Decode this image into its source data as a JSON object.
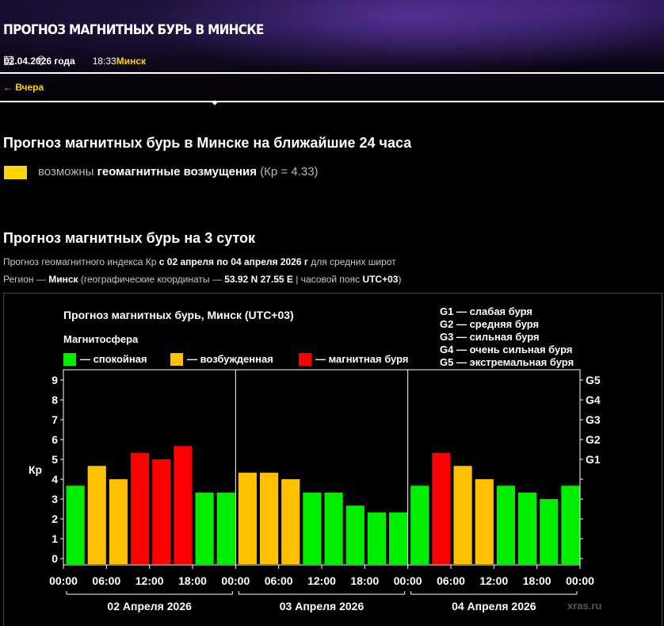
{
  "header": {
    "title": "ПРОГНОЗ МАГНИТНЫХ БУРЬ В МИНСКЕ",
    "date": "02.04.2026 года",
    "time": "18:33",
    "city": "Минск",
    "prev_link": "← Вчера"
  },
  "today": {
    "heading": "Прогноз магнитных бурь в Минске на ближайшие 24 часа",
    "status_pre": "возможны",
    "status_bold": "геомагнитные возмущения",
    "status_post": "(Кр = 4.33)",
    "status_color": "#ffd400"
  },
  "three_day": {
    "heading": "Прогноз магнитных бурь на 3 суток",
    "line1_pre": "Прогноз геомагнитного индекса Кр",
    "line1_bold": "с 02 апреля по 04 апреля 2026 г",
    "line1_post": "для средних широт",
    "line2_pre": "Регион —",
    "line2_city": "Минск",
    "line2_mid": "(географические координаты —",
    "line2_coords": "53.92 N 27.55 E",
    "line2_tz_pre": "| часовой пояс",
    "line2_tz": "UTC+03",
    "line2_end": ")"
  },
  "chart_data": {
    "type": "bar",
    "title": "Прогноз магнитных бурь, Минск (UTC+03)",
    "legend_title": "Магнитосфера",
    "legend": [
      {
        "label": "— спокойная",
        "color": "#00ee00"
      },
      {
        "label": "— возбужденная",
        "color": "#ffc000"
      },
      {
        "label": "— магнитная буря",
        "color": "#ff0000"
      }
    ],
    "storm_scale": [
      "G1 — слабая буря",
      "G2 — средняя буря",
      "G3 — сильная буря",
      "G4 — очень сильная буря",
      "G5 — экстремальная буря"
    ],
    "ylabel": "Кр",
    "ylim": [
      0,
      9
    ],
    "y_ticks": [
      "0",
      "1",
      "2",
      "3",
      "4",
      "5",
      "6",
      "7",
      "8",
      "9"
    ],
    "right_ticks": [
      {
        "label": "G1",
        "value": 5
      },
      {
        "label": "G2",
        "value": 6
      },
      {
        "label": "G3",
        "value": 7
      },
      {
        "label": "G4",
        "value": 8
      },
      {
        "label": "G5",
        "value": 9
      }
    ],
    "x_tick_labels": [
      "00:00",
      "06:00",
      "12:00",
      "18:00",
      "00:00",
      "06:00",
      "12:00",
      "18:00",
      "00:00",
      "06:00",
      "12:00",
      "18:00",
      "00:00"
    ],
    "days": [
      "02 Апреля 2026",
      "03 Апреля 2026",
      "04 Апреля 2026"
    ],
    "values": [
      3.67,
      4.67,
      4.0,
      5.33,
      5.0,
      5.67,
      3.33,
      3.33,
      4.33,
      4.33,
      4.0,
      3.33,
      3.33,
      2.67,
      2.33,
      2.33,
      3.67,
      5.33,
      4.67,
      4.0,
      3.67,
      3.33,
      3.0,
      3.67
    ],
    "colors": [
      "#00ee00",
      "#ffc000",
      "#ffc000",
      "#ff0000",
      "#ff0000",
      "#ff0000",
      "#00ee00",
      "#00ee00",
      "#ffc000",
      "#ffc000",
      "#ffc000",
      "#00ee00",
      "#00ee00",
      "#00ee00",
      "#00ee00",
      "#00ee00",
      "#00ee00",
      "#ff0000",
      "#ffc000",
      "#ffc000",
      "#00ee00",
      "#00ee00",
      "#00ee00",
      "#00ee00"
    ],
    "watermark": "xras.ru"
  }
}
